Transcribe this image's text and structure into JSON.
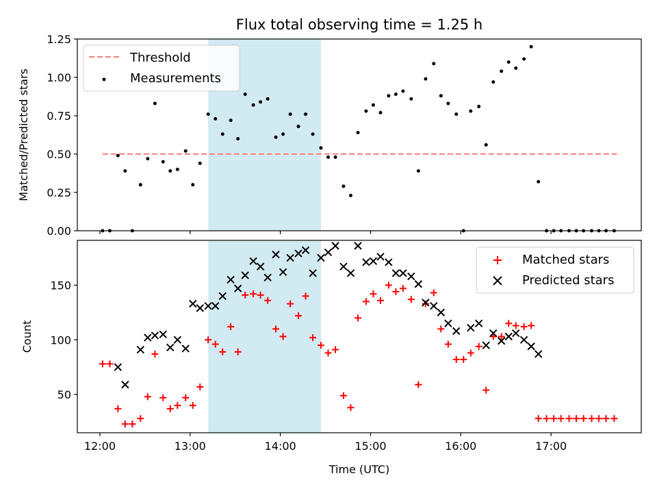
{
  "title": "Flux total observing time = 1.25 h",
  "colors": {
    "threshold": "#ff7f7f",
    "measurement": "#000000",
    "matched": "#ff0000",
    "predicted": "#000000",
    "shade": "#add8e6"
  },
  "chart_data": [
    {
      "type": "scatter",
      "title": "Flux total observing time = 1.25 h",
      "ylabel": "Matched/Predicted stars",
      "xlabel": "",
      "xlim": [
        -0.25,
        6.0
      ],
      "ylim": [
        0,
        1.25
      ],
      "xtick_values": [
        0,
        1,
        2,
        3,
        4,
        5
      ],
      "xtick_labels": [
        "12:00",
        "13:00",
        "14:00",
        "15:00",
        "16:00",
        "17:00"
      ],
      "ytick_values": [
        0.0,
        0.25,
        0.5,
        0.75,
        1.0,
        1.25
      ],
      "ytick_labels": [
        "0.00",
        "0.25",
        "0.50",
        "0.75",
        "1.00",
        "1.25"
      ],
      "shaded_span": [
        1.2,
        2.45
      ],
      "legend": {
        "placement": "top-left",
        "entries": [
          "Threshold",
          "Measurements"
        ]
      },
      "threshold": {
        "name": "Threshold",
        "y": 0.5,
        "x_range": [
          0.03,
          5.73
        ]
      },
      "series": [
        {
          "name": "Measurements",
          "points": [
            [
              0.03,
              0.0
            ],
            [
              0.11,
              0.0
            ],
            [
              0.2,
              0.49
            ],
            [
              0.28,
              0.39
            ],
            [
              0.36,
              0.0
            ],
            [
              0.45,
              0.3
            ],
            [
              0.53,
              0.47
            ],
            [
              0.61,
              0.83
            ],
            [
              0.7,
              0.45
            ],
            [
              0.78,
              0.39
            ],
            [
              0.86,
              0.4
            ],
            [
              0.95,
              0.52
            ],
            [
              1.03,
              0.3
            ],
            [
              1.11,
              0.44
            ],
            [
              1.2,
              0.76
            ],
            [
              1.28,
              0.73
            ],
            [
              1.36,
              0.63
            ],
            [
              1.45,
              0.72
            ],
            [
              1.53,
              0.6
            ],
            [
              1.61,
              0.89
            ],
            [
              1.7,
              0.82
            ],
            [
              1.78,
              0.84
            ],
            [
              1.86,
              0.86
            ],
            [
              1.95,
              0.61
            ],
            [
              2.03,
              0.63
            ],
            [
              2.11,
              0.76
            ],
            [
              2.2,
              0.68
            ],
            [
              2.28,
              0.76
            ],
            [
              2.36,
              0.63
            ],
            [
              2.45,
              0.54
            ],
            [
              2.53,
              0.48
            ],
            [
              2.61,
              0.48
            ],
            [
              2.7,
              0.29
            ],
            [
              2.78,
              0.23
            ],
            [
              2.86,
              0.64
            ],
            [
              2.95,
              0.78
            ],
            [
              3.03,
              0.82
            ],
            [
              3.11,
              0.77
            ],
            [
              3.2,
              0.88
            ],
            [
              3.28,
              0.89
            ],
            [
              3.36,
              0.91
            ],
            [
              3.45,
              0.86
            ],
            [
              3.53,
              0.39
            ],
            [
              3.61,
              0.99
            ],
            [
              3.7,
              1.09
            ],
            [
              3.78,
              0.88
            ],
            [
              3.86,
              0.83
            ],
            [
              3.95,
              0.76
            ],
            [
              4.03,
              0.0
            ],
            [
              4.11,
              0.78
            ],
            [
              4.2,
              0.81
            ],
            [
              4.28,
              0.56
            ],
            [
              4.36,
              0.97
            ],
            [
              4.45,
              1.04
            ],
            [
              4.53,
              1.1
            ],
            [
              4.61,
              1.06
            ],
            [
              4.7,
              1.12
            ],
            [
              4.78,
              1.2
            ],
            [
              4.86,
              0.32
            ],
            [
              4.95,
              0.0
            ],
            [
              5.03,
              0.0
            ],
            [
              5.11,
              0.0
            ],
            [
              5.2,
              0.0
            ],
            [
              5.28,
              0.0
            ],
            [
              5.36,
              0.0
            ],
            [
              5.45,
              0.0
            ],
            [
              5.53,
              0.0
            ],
            [
              5.61,
              0.0
            ],
            [
              5.7,
              0.0
            ]
          ]
        }
      ]
    },
    {
      "type": "scatter",
      "title": "",
      "ylabel": "Count",
      "xlabel": "Time (UTC)",
      "xlim": [
        -0.25,
        6.0
      ],
      "ylim": [
        15,
        191
      ],
      "xtick_values": [
        0,
        1,
        2,
        3,
        4,
        5
      ],
      "xtick_labels": [
        "12:00",
        "13:00",
        "14:00",
        "15:00",
        "16:00",
        "17:00"
      ],
      "ytick_values": [
        50,
        100,
        150
      ],
      "ytick_labels": [
        "50",
        "100",
        "150"
      ],
      "shaded_span": [
        1.2,
        2.45
      ],
      "legend": {
        "placement": "top-right",
        "entries": [
          "Matched stars",
          "Predicted stars"
        ]
      },
      "series": [
        {
          "name": "Matched stars",
          "marker": "plus",
          "points": [
            [
              0.03,
              78
            ],
            [
              0.11,
              78
            ],
            [
              0.2,
              37
            ],
            [
              0.28,
              23
            ],
            [
              0.36,
              23
            ],
            [
              0.45,
              28
            ],
            [
              0.53,
              48
            ],
            [
              0.61,
              87
            ],
            [
              0.7,
              47
            ],
            [
              0.78,
              37
            ],
            [
              0.86,
              40
            ],
            [
              0.95,
              47
            ],
            [
              1.03,
              40
            ],
            [
              1.11,
              57
            ],
            [
              1.2,
              100
            ],
            [
              1.28,
              96
            ],
            [
              1.36,
              89
            ],
            [
              1.45,
              112
            ],
            [
              1.53,
              89
            ],
            [
              1.61,
              141
            ],
            [
              1.7,
              142
            ],
            [
              1.78,
              141
            ],
            [
              1.86,
              136
            ],
            [
              1.95,
              110
            ],
            [
              2.03,
              103
            ],
            [
              2.11,
              133
            ],
            [
              2.2,
              122
            ],
            [
              2.28,
              140
            ],
            [
              2.36,
              102
            ],
            [
              2.45,
              95
            ],
            [
              2.53,
              88
            ],
            [
              2.61,
              91
            ],
            [
              2.7,
              49
            ],
            [
              2.78,
              38
            ],
            [
              2.86,
              120
            ],
            [
              2.95,
              135
            ],
            [
              3.03,
              142
            ],
            [
              3.11,
              136
            ],
            [
              3.2,
              150
            ],
            [
              3.28,
              144
            ],
            [
              3.36,
              147
            ],
            [
              3.45,
              137
            ],
            [
              3.53,
              59
            ],
            [
              3.61,
              133
            ],
            [
              3.7,
              143
            ],
            [
              3.78,
              110
            ],
            [
              3.86,
              96
            ],
            [
              3.95,
              82
            ],
            [
              4.03,
              82
            ],
            [
              4.11,
              88
            ],
            [
              4.2,
              94
            ],
            [
              4.28,
              54
            ],
            [
              4.36,
              103
            ],
            [
              4.45,
              103
            ],
            [
              4.53,
              115
            ],
            [
              4.61,
              113
            ],
            [
              4.7,
              112
            ],
            [
              4.78,
              113
            ],
            [
              4.86,
              28
            ],
            [
              4.95,
              28
            ],
            [
              5.03,
              28
            ],
            [
              5.11,
              28
            ],
            [
              5.2,
              28
            ],
            [
              5.28,
              28
            ],
            [
              5.36,
              28
            ],
            [
              5.45,
              28
            ],
            [
              5.53,
              28
            ],
            [
              5.61,
              28
            ],
            [
              5.7,
              28
            ]
          ]
        },
        {
          "name": "Predicted stars",
          "marker": "x",
          "points": [
            [
              0.2,
              75
            ],
            [
              0.28,
              59
            ],
            [
              0.45,
              91
            ],
            [
              0.53,
              102
            ],
            [
              0.61,
              104
            ],
            [
              0.7,
              105
            ],
            [
              0.78,
              93
            ],
            [
              0.86,
              100
            ],
            [
              0.95,
              92
            ],
            [
              1.03,
              133
            ],
            [
              1.11,
              129
            ],
            [
              1.2,
              131
            ],
            [
              1.28,
              131
            ],
            [
              1.36,
              140
            ],
            [
              1.45,
              155
            ],
            [
              1.53,
              147
            ],
            [
              1.61,
              159
            ],
            [
              1.7,
              172
            ],
            [
              1.78,
              167
            ],
            [
              1.86,
              157
            ],
            [
              1.95,
              178
            ],
            [
              2.03,
              162
            ],
            [
              2.11,
              175
            ],
            [
              2.2,
              179
            ],
            [
              2.28,
              182
            ],
            [
              2.36,
              161
            ],
            [
              2.45,
              175
            ],
            [
              2.53,
              180
            ],
            [
              2.61,
              186
            ],
            [
              2.7,
              167
            ],
            [
              2.78,
              161
            ],
            [
              2.86,
              186
            ],
            [
              2.95,
              171
            ],
            [
              3.03,
              172
            ],
            [
              3.11,
              176
            ],
            [
              3.2,
              171
            ],
            [
              3.28,
              161
            ],
            [
              3.36,
              161
            ],
            [
              3.45,
              158
            ],
            [
              3.53,
              151
            ],
            [
              3.61,
              134
            ],
            [
              3.7,
              131
            ],
            [
              3.78,
              125
            ],
            [
              3.86,
              115
            ],
            [
              3.95,
              108
            ],
            [
              4.11,
              111
            ],
            [
              4.2,
              115
            ],
            [
              4.28,
              95
            ],
            [
              4.36,
              106
            ],
            [
              4.45,
              99
            ],
            [
              4.53,
              103
            ],
            [
              4.61,
              106
            ],
            [
              4.7,
              100
            ],
            [
              4.78,
              94
            ],
            [
              4.86,
              87
            ]
          ]
        }
      ]
    }
  ]
}
